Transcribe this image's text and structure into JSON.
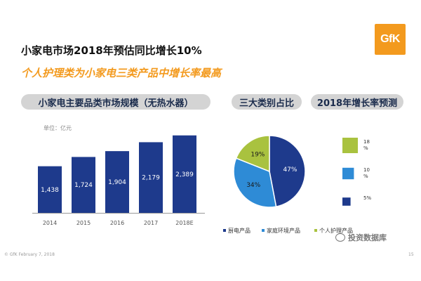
{
  "logo_text": "GfK",
  "title": "小家电市场2018年预估同比增长10%",
  "subtitle": "个人护理类为小家电三类产品中增长率最高",
  "footer": "© GfK February 7, 2018",
  "page_number": "15",
  "watermark": "投资数据库",
  "headings": {
    "bar": "小家电主要品类市场规模（无热水器）",
    "pie": "三大类别占比",
    "growth": "2018年增长率预测"
  },
  "colors": {
    "navy": "#1e3a8c",
    "blue": "#2e8bd6",
    "green": "#a9c23f",
    "orange": "#f39a1e"
  },
  "chart_data": [
    {
      "type": "bar",
      "title": "小家电主要品类市场规模（无热水器）",
      "unit_label": "单位：亿元",
      "categories": [
        "2014",
        "2015",
        "2016",
        "2017",
        "2018E"
      ],
      "values": [
        1438,
        1724,
        1904,
        2179,
        2389
      ],
      "value_labels": [
        "1,438",
        "1,724",
        "1,904",
        "2,179",
        "2,389"
      ],
      "ylim": [
        0,
        2600
      ],
      "grid": false
    },
    {
      "type": "pie",
      "title": "三大类别占比",
      "slices": [
        {
          "name": "厨电产品",
          "value": 47,
          "label": "47%",
          "color": "#1e3a8c"
        },
        {
          "name": "家庭环境产品",
          "value": 34,
          "label": "34%",
          "color": "#2e8bd6"
        },
        {
          "name": "个人护理产品",
          "value": 19,
          "label": "19%",
          "color": "#a9c23f"
        }
      ],
      "legend_position": "bottom"
    },
    {
      "type": "table",
      "title": "2018年增长率预测",
      "rows": [
        {
          "category": "个人护理产品",
          "value": 18,
          "label": "18\n%",
          "color": "#a9c23f"
        },
        {
          "category": "家庭环境产品",
          "value": 10,
          "label": "10\n%",
          "color": "#2e8bd6"
        },
        {
          "category": "厨电产品",
          "value": 5,
          "label": "5%",
          "color": "#1e3a8c"
        }
      ]
    }
  ]
}
